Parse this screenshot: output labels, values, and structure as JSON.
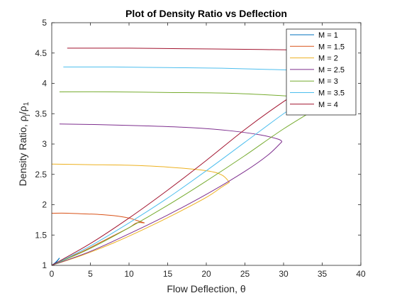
{
  "chart_data": {
    "type": "line",
    "title": "Plot of Density Ratio vs Deflection",
    "xlabel": "Flow Deflection, θ",
    "ylabel": "Density Ratio, ρ",
    "ylabel_sub_1": "j",
    "ylabel_slash": "/ρ",
    "ylabel_sub_2": "1",
    "xlim": [
      0,
      40
    ],
    "ylim": [
      1,
      5
    ],
    "xticks": [
      0,
      5,
      10,
      15,
      20,
      25,
      30,
      35,
      40
    ],
    "yticks": [
      1,
      1.5,
      2,
      2.5,
      3,
      3.5,
      4,
      4.5,
      5
    ],
    "grid": false,
    "legend_position": "top-right",
    "series": [
      {
        "name": "M = 1",
        "color": "#0072BD",
        "weak": [
          [
            0,
            1
          ],
          [
            0.5,
            1.05
          ],
          [
            1,
            1.12
          ]
        ],
        "strong": [
          [
            0,
            1
          ],
          [
            0.5,
            1.04
          ],
          [
            1,
            1.12
          ]
        ]
      },
      {
        "name": "M = 1.5",
        "color": "#D95319",
        "weak": [
          [
            0,
            1
          ],
          [
            2,
            1.12
          ],
          [
            4,
            1.23
          ],
          [
            6,
            1.36
          ],
          [
            8,
            1.49
          ],
          [
            10,
            1.62
          ],
          [
            11,
            1.7
          ],
          [
            12,
            1.7
          ]
        ],
        "strong": [
          [
            0,
            1.86
          ],
          [
            2,
            1.86
          ],
          [
            4,
            1.85
          ],
          [
            6,
            1.84
          ],
          [
            8,
            1.82
          ],
          [
            10,
            1.78
          ],
          [
            11,
            1.74
          ],
          [
            12,
            1.7
          ]
        ]
      },
      {
        "name": "M = 2",
        "color": "#EDB120",
        "weak": [
          [
            0,
            1
          ],
          [
            4,
            1.17
          ],
          [
            8,
            1.37
          ],
          [
            12,
            1.6
          ],
          [
            16,
            1.85
          ],
          [
            20,
            2.12
          ],
          [
            22,
            2.29
          ],
          [
            23,
            2.37
          ]
        ],
        "strong": [
          [
            0,
            2.67
          ],
          [
            5,
            2.66
          ],
          [
            10,
            2.65
          ],
          [
            15,
            2.62
          ],
          [
            20,
            2.56
          ],
          [
            22,
            2.49
          ],
          [
            23,
            2.37
          ]
        ]
      },
      {
        "name": "M = 2.5",
        "color": "#7E2F8E",
        "weak": [
          [
            0,
            1
          ],
          [
            5,
            1.23
          ],
          [
            10,
            1.52
          ],
          [
            15,
            1.83
          ],
          [
            20,
            2.17
          ],
          [
            25,
            2.55
          ],
          [
            28,
            2.82
          ],
          [
            29.8,
            3.04
          ]
        ],
        "strong": [
          [
            1,
            3.33
          ],
          [
            6,
            3.32
          ],
          [
            12,
            3.3
          ],
          [
            18,
            3.27
          ],
          [
            23,
            3.22
          ],
          [
            27,
            3.15
          ],
          [
            29.3,
            3.08
          ],
          [
            29.8,
            3.04
          ]
        ]
      },
      {
        "name": "M = 3",
        "color": "#77AC30",
        "weak": [
          [
            0,
            1
          ],
          [
            5,
            1.28
          ],
          [
            10,
            1.62
          ],
          [
            15,
            1.99
          ],
          [
            20,
            2.39
          ],
          [
            25,
            2.81
          ],
          [
            30,
            3.25
          ],
          [
            35,
            3.64
          ]
        ],
        "strong": [
          [
            1,
            3.86
          ],
          [
            8,
            3.86
          ],
          [
            15,
            3.85
          ],
          [
            22,
            3.84
          ],
          [
            28,
            3.81
          ],
          [
            33,
            3.77
          ],
          [
            35,
            3.75
          ]
        ]
      },
      {
        "name": "M = 3.5",
        "color": "#4DBEEE",
        "weak": [
          [
            0,
            1
          ],
          [
            5,
            1.32
          ],
          [
            10,
            1.7
          ],
          [
            15,
            2.11
          ],
          [
            20,
            2.56
          ],
          [
            25,
            3.03
          ],
          [
            30,
            3.5
          ],
          [
            33,
            3.75
          ]
        ],
        "strong": [
          [
            1.5,
            4.27
          ],
          [
            8,
            4.27
          ],
          [
            15,
            4.26
          ],
          [
            22,
            4.25
          ],
          [
            28,
            4.23
          ],
          [
            33,
            4.21
          ]
        ]
      },
      {
        "name": "M = 4",
        "color": "#A2142F",
        "weak": [
          [
            0,
            1
          ],
          [
            5,
            1.36
          ],
          [
            10,
            1.78
          ],
          [
            15,
            2.24
          ],
          [
            20,
            2.73
          ],
          [
            25,
            3.24
          ],
          [
            30,
            3.7
          ],
          [
            32,
            3.85
          ]
        ],
        "strong": [
          [
            2,
            4.58
          ],
          [
            10,
            4.58
          ],
          [
            18,
            4.57
          ],
          [
            26,
            4.56
          ],
          [
            32,
            4.55
          ]
        ]
      }
    ]
  }
}
